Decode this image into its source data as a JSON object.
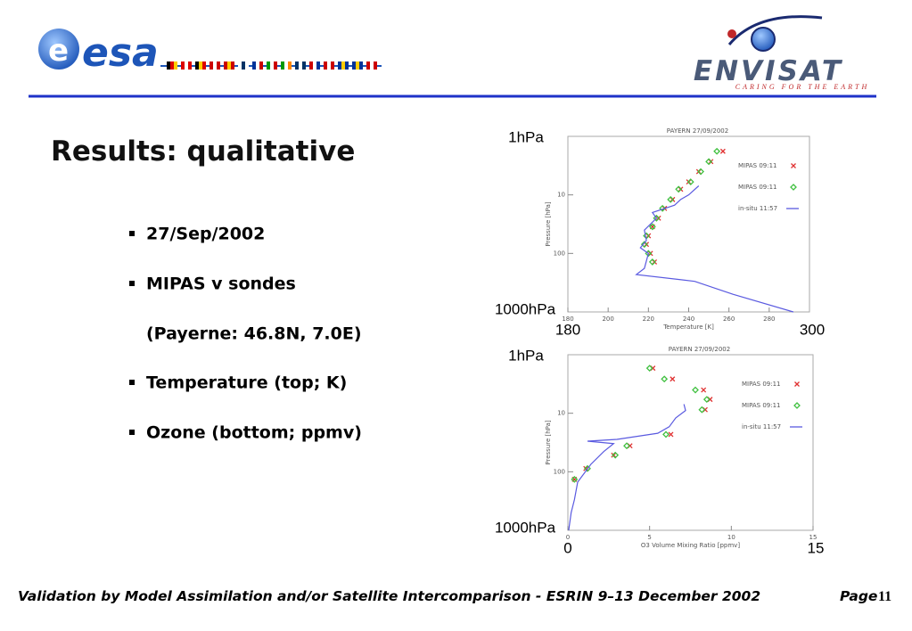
{
  "header": {
    "logo_left": "esa",
    "logo_right": "ENVISAT",
    "tagline": "CARING FOR THE EARTH"
  },
  "slide": {
    "title": "Results: qualitative",
    "bullets": [
      "27/Sep/2002",
      "MIPAS v sondes",
      "Temperature (top; K)",
      "Ozone (bottom; ppmv)"
    ],
    "note": "(Payerne: 46.8N, 7.0E)"
  },
  "footer": {
    "text": "Validation by Model Assimilation and/or Satellite Intercomparison - ESRIN 9–13 December 2002",
    "page_label": "Page",
    "page_number": 11
  },
  "chart_data": [
    {
      "type": "line",
      "title": "PAYERN 27/09/2002",
      "xlabel": "Temperature [K]",
      "ylabel": "Pressure [hPa]",
      "xlim": [
        180,
        300
      ],
      "xticks": [
        180,
        200,
        220,
        240,
        260,
        280
      ],
      "ylim": [
        1000,
        1
      ],
      "yticks": [
        10,
        100
      ],
      "log_y": true,
      "annotations": {
        "top": "1hPa",
        "bottom": "1000hPa",
        "left": "180",
        "right": "300"
      },
      "series": [
        {
          "name": "MIPAS 09:11",
          "color": "#e03030",
          "marker": "x",
          "x": [
            257,
            251,
            245,
            240,
            236,
            232,
            228,
            225,
            222,
            220,
            219,
            221,
            223
          ],
          "values": [
            1.8,
            2.7,
            4,
            6,
            8,
            12,
            17,
            25,
            35,
            50,
            70,
            100,
            140
          ]
        },
        {
          "name": "MIPAS 09:11",
          "color": "#40c040",
          "marker": "diamond",
          "x": [
            254,
            250,
            246,
            241,
            235,
            231,
            227,
            224,
            222,
            219,
            218,
            220,
            222
          ],
          "values": [
            1.8,
            2.7,
            4,
            6,
            8,
            12,
            17,
            25,
            35,
            50,
            70,
            100,
            140
          ]
        },
        {
          "name": "in-situ 11:57",
          "color": "#5a5ae0",
          "marker": "line",
          "x": [
            292,
            262,
            243,
            214,
            218,
            220,
            216,
            219,
            218,
            224,
            222,
            233,
            236,
            240,
            245
          ],
          "values": [
            1000,
            500,
            300,
            230,
            180,
            100,
            80,
            60,
            40,
            25,
            20,
            15,
            12,
            10,
            7
          ]
        }
      ]
    },
    {
      "type": "line",
      "title": "PAYERN 27/09/2002",
      "xlabel": "O3 Volume Mixing Ratio [ppmv]",
      "ylabel": "Pressure [hPa]",
      "xlim": [
        0,
        15
      ],
      "xticks": [
        0,
        5,
        10,
        15
      ],
      "ylim": [
        1000,
        1
      ],
      "yticks": [
        10,
        100
      ],
      "log_y": true,
      "annotations": {
        "top": "1hPa",
        "bottom": "1000hPa",
        "left": "0",
        "right": "15"
      },
      "series": [
        {
          "name": "MIPAS 09:11",
          "color": "#e03030",
          "marker": "x",
          "x": [
            5.2,
            6.4,
            8.3,
            8.7,
            8.4,
            6.3,
            3.8,
            2.8,
            1.1,
            0.4
          ],
          "values": [
            1.7,
            2.6,
            4,
            5.8,
            8.7,
            23,
            36,
            52,
            88,
            135
          ]
        },
        {
          "name": "MIPAS 09:11",
          "color": "#40c040",
          "marker": "diamond",
          "x": [
            5.0,
            5.9,
            7.8,
            8.5,
            8.2,
            6.0,
            3.6,
            2.9,
            1.2,
            0.4
          ],
          "values": [
            1.7,
            2.6,
            4,
            5.8,
            8.7,
            23,
            36,
            52,
            88,
            135
          ]
        },
        {
          "name": "in-situ 11:57",
          "color": "#5a5ae0",
          "marker": "line",
          "x": [
            0.05,
            0.2,
            0.4,
            0.6,
            1.4,
            2.2,
            2.8,
            1.2,
            3.0,
            5.5,
            6.2,
            6.6,
            7.2,
            7.1
          ],
          "values": [
            1000,
            500,
            300,
            150,
            75,
            45,
            33,
            30,
            28,
            22,
            17,
            12,
            9,
            7
          ]
        }
      ]
    }
  ]
}
